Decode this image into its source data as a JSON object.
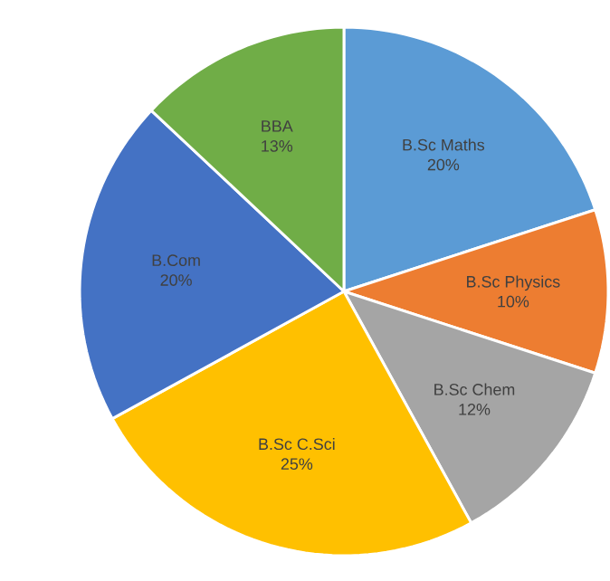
{
  "chart_data": {
    "type": "pie",
    "categories": [
      "B.Sc Maths",
      "B.Sc Physics",
      "B.Sc Chem",
      "B.Sc C.Sci",
      "B.Com",
      "BBA"
    ],
    "values": [
      20,
      10,
      12,
      25,
      20,
      13
    ],
    "value_labels": [
      "20%",
      "10%",
      "12%",
      "25%",
      "20%",
      "13%"
    ],
    "colors": [
      "#5b9bd5",
      "#ed7d31",
      "#a5a5a5",
      "#ffc000",
      "#4472c4",
      "#70ad47"
    ]
  }
}
